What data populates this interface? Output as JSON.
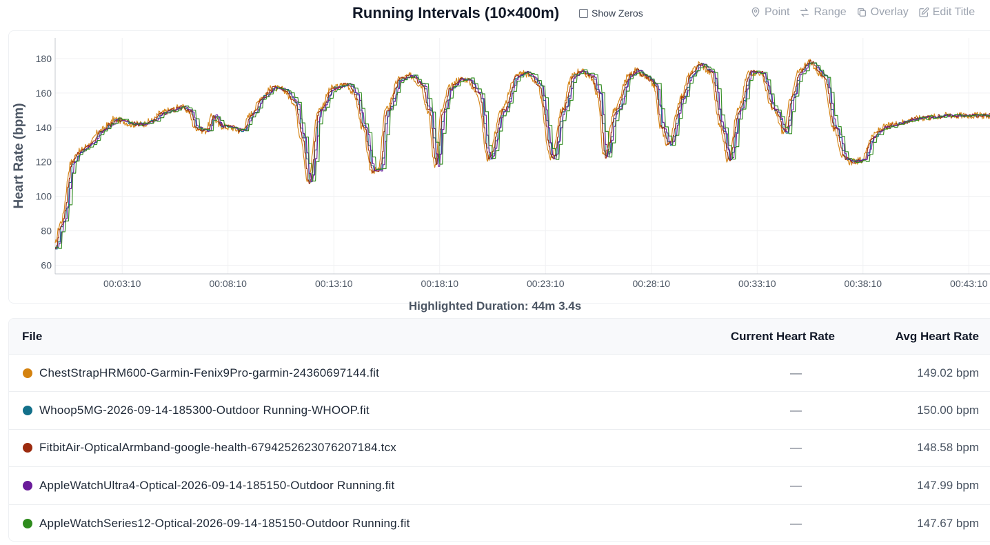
{
  "header": {
    "title": "Running Intervals (10×400m)",
    "show_zeros_label": "Show Zeros",
    "tools": [
      {
        "label": "Point",
        "icon": "map-pin-icon"
      },
      {
        "label": "Range",
        "icon": "arrows-exchange-icon"
      },
      {
        "label": "Overlay",
        "icon": "copy-icon"
      },
      {
        "label": "Edit Title",
        "icon": "edit-icon"
      }
    ]
  },
  "highlight": "Highlighted Duration: 44m 3.4s",
  "table": {
    "headers": {
      "file": "File",
      "current": "Current Heart Rate",
      "avg": "Avg Heart Rate"
    },
    "rows": [
      {
        "file": "ChestStrapHRM600-Garmin-Fenix9Pro-garmin-24360697144.fit",
        "current": "—",
        "avg": "149.02 bpm",
        "color": "#d4820f"
      },
      {
        "file": "Whoop5MG-2026-09-14-185300-Outdoor Running-WHOOP.fit",
        "current": "—",
        "avg": "150.00 bpm",
        "color": "#13708a"
      },
      {
        "file": "FitbitAir-OpticalArmband-google-health-6794252623076207184.tcx",
        "current": "—",
        "avg": "148.58 bpm",
        "color": "#9c2b0f"
      },
      {
        "file": "AppleWatchUltra4-Optical-2026-09-14-185150-Outdoor Running.fit",
        "current": "—",
        "avg": "147.99 bpm",
        "color": "#6a1b9a"
      },
      {
        "file": "AppleWatchSeries12-Optical-2026-09-14-185150-Outdoor Running.fit",
        "current": "—",
        "avg": "147.67 bpm",
        "color": "#2e8b1d"
      }
    ]
  },
  "chart_data": {
    "type": "line",
    "ylabel": "Heart Rate (bpm)",
    "xlabel": "",
    "y_ticks": [
      60,
      80,
      100,
      120,
      140,
      160,
      180
    ],
    "ylim": [
      55,
      192
    ],
    "x_ticks": [
      "00:03:10",
      "00:08:10",
      "00:13:10",
      "00:18:10",
      "00:23:10",
      "00:28:10",
      "00:33:10",
      "00:38:10",
      "00:43:10"
    ],
    "xlim_seconds": [
      0,
      2650
    ],
    "grid": true,
    "profile": {
      "x_seconds": [
        0,
        20,
        50,
        70,
        100,
        130,
        160,
        170,
        190,
        220,
        250,
        280,
        300,
        330,
        360,
        380,
        400,
        430,
        450,
        470,
        500,
        530,
        560,
        590,
        620,
        650,
        680,
        700,
        720,
        750,
        790,
        830,
        850,
        875,
        900,
        920,
        940,
        980,
        1010,
        1040,
        1060,
        1080,
        1100,
        1120,
        1150,
        1170,
        1200,
        1230,
        1270,
        1310,
        1330,
        1350,
        1370,
        1410,
        1440,
        1470,
        1490,
        1520,
        1540,
        1560,
        1590,
        1630,
        1650,
        1670,
        1700,
        1720,
        1740,
        1780,
        1800,
        1830,
        1860,
        1890,
        1910,
        1940,
        1970,
        2000,
        2040,
        2070,
        2090,
        2110,
        2140,
        2180,
        2210,
        2240,
        2260,
        2290,
        2320,
        2350,
        2370,
        2400,
        2440,
        2480,
        2530,
        2570,
        2600,
        2650
      ],
      "heart_rate": [
        70,
        85,
        120,
        126,
        130,
        138,
        142,
        145,
        144,
        142,
        142,
        144,
        148,
        150,
        152,
        150,
        140,
        138,
        147,
        141,
        140,
        138,
        148,
        158,
        163,
        162,
        155,
        135,
        108,
        150,
        163,
        165,
        160,
        140,
        115,
        115,
        150,
        168,
        170,
        165,
        150,
        118,
        150,
        163,
        168,
        168,
        160,
        122,
        150,
        170,
        172,
        170,
        165,
        122,
        150,
        170,
        173,
        170,
        160,
        123,
        150,
        170,
        173,
        170,
        165,
        140,
        130,
        158,
        170,
        177,
        172,
        140,
        121,
        150,
        172,
        172,
        150,
        137,
        158,
        172,
        178,
        170,
        140,
        122,
        120,
        121,
        135,
        140,
        141,
        143,
        145,
        146,
        147,
        147,
        147,
        147
      ]
    },
    "series": [
      {
        "name": "ChestStrapHRM600-Garmin-Fenix9Pro-garmin-24360697144.fit",
        "color": "#d4820f"
      },
      {
        "name": "Whoop5MG-2026-09-14-185300-Outdoor Running-WHOOP.fit",
        "color": "#13708a"
      },
      {
        "name": "FitbitAir-OpticalArmband-google-health-6794252623076207184.tcx",
        "color": "#9c2b0f"
      },
      {
        "name": "AppleWatchUltra4-Optical-2026-09-14-185150-Outdoor Running.fit",
        "color": "#6a1b9a"
      },
      {
        "name": "AppleWatchSeries12-Optical-2026-09-14-185150-Outdoor Running.fit",
        "color": "#2e8b1d"
      }
    ]
  }
}
